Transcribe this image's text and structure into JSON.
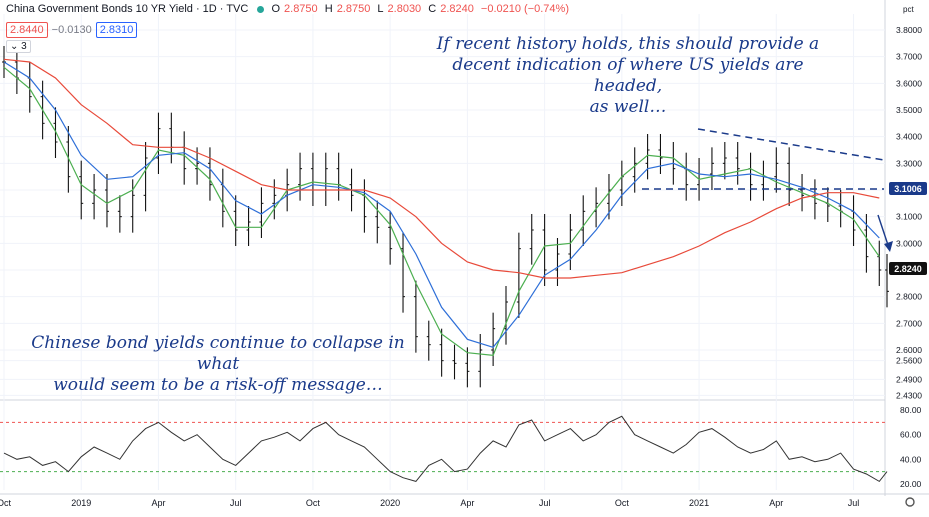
{
  "header": {
    "title": "China Government Bonds 10 YR Yield · 1D · TVC",
    "ohlc": [
      {
        "k": "O",
        "v": "2.8750"
      },
      {
        "k": "H",
        "v": "2.8750"
      },
      {
        "k": "L",
        "v": "2.8030"
      },
      {
        "k": "C",
        "v": "2.8240"
      }
    ],
    "change": "−0.0210 (−0.74%)",
    "bid": "2.8440",
    "spread": "−0.0130",
    "ask": "2.8310",
    "collapse_label": "3"
  },
  "axis_unit": "pct",
  "annotations": {
    "top": [
      "If recent history holds, this should provide a",
      "decent indication of where US yields are headed,",
      "as well…"
    ],
    "bottom": [
      "Chinese bond yields continue to collapse in what",
      "would seem to be a risk-off message…"
    ]
  },
  "price_labels": {
    "last": "2.8240",
    "level": "3.1006"
  },
  "colors": {
    "accent_red": "#ef5350",
    "accent_blue": "#2962ff",
    "sma_fast": "#4caf50",
    "sma_mid": "#2e6fd8",
    "sma_slow": "#e84a3a",
    "annotation": "#1a3a8a",
    "rsi_line": "#333333"
  },
  "chart_data": [
    {
      "type": "line",
      "title": "China Government Bonds 10 YR Yield · 1D · TVC",
      "ylabel": "pct",
      "ylim": [
        2.42,
        3.86
      ],
      "yticks": [
        "3.8000",
        "3.7000",
        "3.6000",
        "3.5000",
        "3.4000",
        "3.3000",
        "3.2000",
        "3.1000",
        "3.0000",
        "2.9000",
        "2.8000",
        "2.7000",
        "2.6000",
        "2.5600",
        "2.4900",
        "2.4300"
      ],
      "x_labels": [
        "Oct",
        "2019",
        "Apr",
        "Jul",
        "Oct",
        "2020",
        "Apr",
        "Jul",
        "Oct",
        "2021",
        "Apr",
        "Jul"
      ],
      "x_label_pos": [
        0,
        3,
        6,
        9,
        12,
        15,
        18,
        21,
        24,
        27,
        30,
        33
      ],
      "x_range": [
        0,
        34.3
      ],
      "grid": true,
      "series": [
        {
          "name": "Price",
          "style": "bars",
          "x": [
            0,
            0.5,
            1,
            1.5,
            2,
            2.5,
            3,
            3.5,
            4,
            4.5,
            5,
            5.5,
            6,
            6.5,
            7,
            7.5,
            8,
            8.5,
            9,
            9.5,
            10,
            10.5,
            11,
            11.5,
            12,
            12.5,
            13,
            13.5,
            14,
            14.5,
            15,
            15.5,
            16,
            16.5,
            17,
            17.5,
            18,
            18.5,
            19,
            19.5,
            20,
            20.5,
            21,
            21.5,
            22,
            22.5,
            23,
            23.5,
            24,
            24.5,
            25,
            25.5,
            26,
            26.5,
            27,
            27.5,
            28,
            28.5,
            29,
            29.5,
            30,
            30.5,
            31,
            31.5,
            32,
            32.5,
            33,
            33.5,
            34,
            34.3
          ],
          "values": [
            3.68,
            3.62,
            3.55,
            3.45,
            3.38,
            3.25,
            3.15,
            3.2,
            3.12,
            3.1,
            3.18,
            3.32,
            3.43,
            3.36,
            3.28,
            3.3,
            3.22,
            3.12,
            3.05,
            3.08,
            3.15,
            3.18,
            3.22,
            3.28,
            3.2,
            3.28,
            3.22,
            3.18,
            3.1,
            3.06,
            2.98,
            2.8,
            2.65,
            2.62,
            2.56,
            2.55,
            2.52,
            2.6,
            2.68,
            2.78,
            2.98,
            3.05,
            2.9,
            2.96,
            3.05,
            3.12,
            3.15,
            3.2,
            3.25,
            3.3,
            3.35,
            3.32,
            3.28,
            3.22,
            3.26,
            3.3,
            3.32,
            3.28,
            3.22,
            3.25,
            3.3,
            3.2,
            3.18,
            3.15,
            3.14,
            3.12,
            3.05,
            2.95,
            2.9,
            2.82
          ]
        },
        {
          "name": "SMA fast",
          "x": [
            0,
            1,
            2,
            3,
            4,
            5,
            6,
            7,
            8,
            9,
            10,
            11,
            12,
            13,
            14,
            15,
            16,
            17,
            18,
            19,
            20,
            21,
            22,
            23,
            24,
            25,
            26,
            27,
            28,
            29,
            30,
            31,
            32,
            33,
            34
          ],
          "values": [
            3.66,
            3.58,
            3.42,
            3.22,
            3.15,
            3.2,
            3.35,
            3.33,
            3.24,
            3.06,
            3.06,
            3.2,
            3.23,
            3.22,
            3.18,
            3.07,
            2.85,
            2.66,
            2.59,
            2.58,
            2.82,
            2.99,
            3.0,
            3.13,
            3.25,
            3.33,
            3.32,
            3.24,
            3.26,
            3.28,
            3.23,
            3.19,
            3.15,
            3.09,
            2.95
          ]
        },
        {
          "name": "SMA mid",
          "x": [
            0,
            1,
            2,
            3,
            4,
            5,
            6,
            7,
            8,
            9,
            10,
            11,
            12,
            13,
            14,
            15,
            16,
            17,
            18,
            19,
            20,
            21,
            22,
            23,
            24,
            25,
            26,
            27,
            28,
            29,
            30,
            31,
            32,
            33,
            34
          ],
          "values": [
            3.68,
            3.62,
            3.5,
            3.33,
            3.24,
            3.25,
            3.33,
            3.34,
            3.28,
            3.16,
            3.11,
            3.18,
            3.22,
            3.21,
            3.19,
            3.12,
            2.96,
            2.76,
            2.64,
            2.61,
            2.73,
            2.88,
            2.94,
            3.05,
            3.18,
            3.28,
            3.3,
            3.26,
            3.25,
            3.26,
            3.24,
            3.21,
            3.17,
            3.12,
            3.02
          ]
        },
        {
          "name": "SMA slow",
          "x": [
            0,
            1,
            2,
            3,
            4,
            5,
            6,
            7,
            8,
            9,
            10,
            11,
            12,
            13,
            14,
            15,
            16,
            17,
            18,
            19,
            20,
            21,
            22,
            23,
            24,
            25,
            26,
            27,
            28,
            29,
            30,
            31,
            32,
            33,
            34
          ],
          "values": [
            3.69,
            3.68,
            3.62,
            3.52,
            3.45,
            3.37,
            3.36,
            3.36,
            3.32,
            3.27,
            3.22,
            3.2,
            3.2,
            3.2,
            3.2,
            3.17,
            3.1,
            3.0,
            2.93,
            2.9,
            2.89,
            2.87,
            2.87,
            2.88,
            2.89,
            2.92,
            2.95,
            2.99,
            3.04,
            3.08,
            3.13,
            3.17,
            3.19,
            3.19,
            3.17
          ]
        }
      ]
    },
    {
      "type": "line",
      "title": "",
      "ylim": [
        15,
        85
      ],
      "yticks": [
        "80.00",
        "60.00",
        "40.00",
        "20.00"
      ],
      "levels": [
        70,
        30
      ],
      "x_range": [
        0,
        34.3
      ],
      "series": [
        {
          "name": "RSI",
          "x": [
            0,
            0.5,
            1,
            1.5,
            2,
            2.5,
            3,
            3.5,
            4,
            4.5,
            5,
            5.5,
            6,
            6.5,
            7,
            7.5,
            8,
            8.5,
            9,
            9.5,
            10,
            10.5,
            11,
            11.5,
            12,
            12.5,
            13,
            13.5,
            14,
            14.5,
            15,
            15.5,
            16,
            16.5,
            17,
            17.5,
            18,
            18.5,
            19,
            19.5,
            20,
            20.5,
            21,
            21.5,
            22,
            22.5,
            23,
            23.5,
            24,
            24.5,
            25,
            25.5,
            26,
            26.5,
            27,
            27.5,
            28,
            28.5,
            29,
            29.5,
            30,
            30.5,
            31,
            31.5,
            32,
            32.5,
            33,
            33.5,
            34,
            34.3
          ],
          "values": [
            45,
            40,
            42,
            35,
            38,
            30,
            42,
            50,
            45,
            40,
            55,
            65,
            70,
            62,
            55,
            60,
            50,
            40,
            35,
            45,
            55,
            58,
            62,
            55,
            65,
            70,
            60,
            55,
            50,
            40,
            30,
            25,
            22,
            35,
            40,
            30,
            32,
            45,
            55,
            50,
            68,
            72,
            55,
            60,
            65,
            55,
            60,
            70,
            75,
            60,
            55,
            50,
            45,
            52,
            62,
            65,
            58,
            50,
            45,
            48,
            55,
            40,
            42,
            38,
            40,
            45,
            32,
            28,
            22,
            30
          ]
        }
      ]
    }
  ]
}
